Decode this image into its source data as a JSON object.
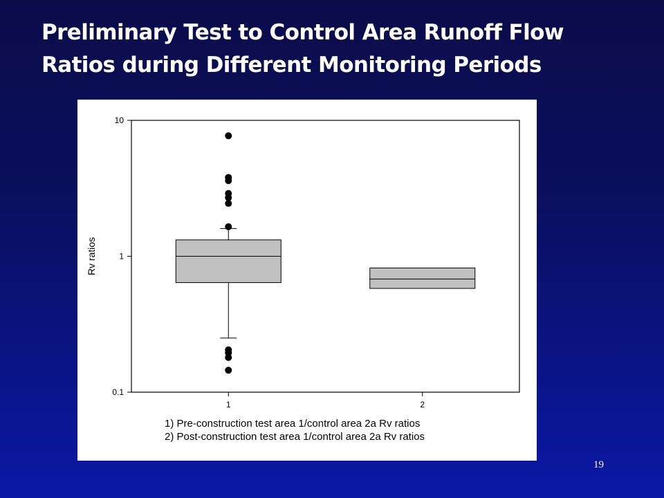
{
  "slide": {
    "title_line1": "Preliminary Test to Control Area Runoff Flow",
    "title_line2": "Ratios during Different Monitoring Periods",
    "page_number": "19"
  },
  "chart_data": {
    "type": "box",
    "title": "",
    "xlabel": "",
    "ylabel": "Rv ratios",
    "yscale": "log",
    "ylim": [
      0.1,
      10
    ],
    "yticks": [
      {
        "value": 0.1,
        "label": "0.1"
      },
      {
        "value": 1,
        "label": "1"
      },
      {
        "value": 10,
        "label": "10"
      }
    ],
    "categories": [
      "1",
      "2"
    ],
    "boxes": [
      {
        "category": "1",
        "q1": 0.64,
        "median": 1.0,
        "q3": 1.32,
        "whisker_low": 0.25,
        "whisker_high": 1.6,
        "outliers": [
          7.7,
          3.8,
          3.6,
          2.9,
          2.7,
          2.45,
          1.65,
          0.205,
          0.195,
          0.18,
          0.145
        ]
      },
      {
        "category": "2",
        "q1": 0.58,
        "median": 0.68,
        "q3": 0.82,
        "whisker_low": null,
        "whisker_high": null,
        "outliers": []
      }
    ],
    "box_fill": "#c0c0c0",
    "grid": false,
    "legend_lines": [
      "1) Pre-construction test area 1/control area 2a Rv ratios",
      "2) Post-construction test area 1/control area 2a Rv ratios"
    ]
  }
}
